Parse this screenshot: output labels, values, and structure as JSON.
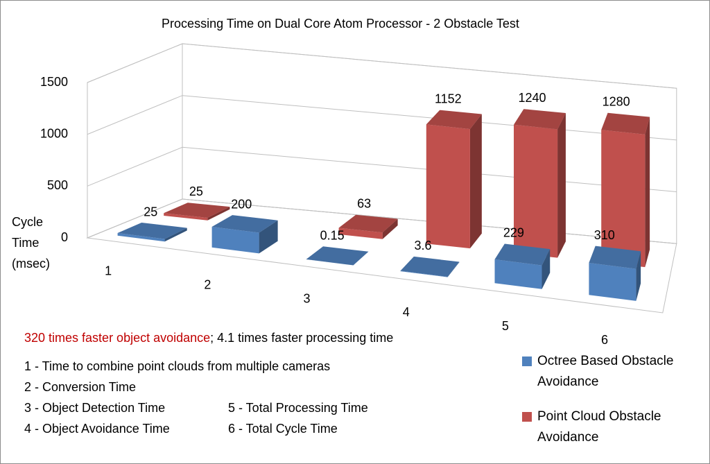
{
  "chart_data": {
    "type": "bar3d",
    "title": "Processing Time on Dual Core Atom Processor - 2 Obstacle Test",
    "y_label": "Cycle Time (msec)",
    "categories": [
      "1",
      "2",
      "3",
      "4",
      "5",
      "6"
    ],
    "series": [
      {
        "name": "Octree Based Obstacle Avoidance",
        "color": "#4f81bd",
        "values": [
          25,
          200,
          0.15,
          3.6,
          229,
          310
        ]
      },
      {
        "name": "Point Cloud Obstacle Avoidance",
        "color": "#c0504d",
        "values": [
          25,
          null,
          63,
          1152,
          1240,
          1280
        ]
      }
    ],
    "ylim": [
      0,
      1500
    ],
    "yticks": [
      0,
      500,
      1000,
      1500
    ],
    "grid": true,
    "annotation": {
      "highlight": "320 times faster object avoidance",
      "highlight_color": "#c00000",
      "rest": "; 4.1 times faster processing time"
    },
    "notes": [
      "1 - Time to combine point clouds from multiple cameras",
      "2 - Conversion Time",
      "3 - Object Detection Time",
      "4 - Object Avoidance Time",
      "5 - Total Processing Time",
      "6 - Total Cycle Time"
    ]
  }
}
